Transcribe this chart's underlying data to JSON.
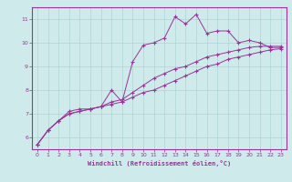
{
  "xlabel": "Windchill (Refroidissement éolien,°C)",
  "ylabel": "",
  "background_color": "#ceeaea",
  "grid_color": "#aed4d4",
  "line_color": "#993399",
  "spine_color": "#993399",
  "xlim": [
    -0.5,
    23.5
  ],
  "ylim": [
    5.5,
    11.5
  ],
  "xticks": [
    0,
    1,
    2,
    3,
    4,
    5,
    6,
    7,
    8,
    9,
    10,
    11,
    12,
    13,
    14,
    15,
    16,
    17,
    18,
    19,
    20,
    21,
    22,
    23
  ],
  "yticks": [
    6,
    7,
    8,
    9,
    10,
    11
  ],
  "series": [
    [
      5.7,
      6.3,
      6.7,
      7.1,
      7.2,
      7.2,
      7.3,
      8.0,
      7.5,
      9.2,
      9.9,
      10.0,
      10.2,
      11.1,
      10.8,
      11.2,
      10.4,
      10.5,
      10.5,
      10.0,
      10.1,
      10.0,
      9.8,
      9.8
    ],
    [
      5.7,
      6.3,
      6.7,
      7.0,
      7.1,
      7.2,
      7.3,
      7.5,
      7.6,
      7.9,
      8.2,
      8.5,
      8.7,
      8.9,
      9.0,
      9.2,
      9.4,
      9.5,
      9.6,
      9.7,
      9.8,
      9.85,
      9.85,
      9.85
    ],
    [
      5.7,
      6.3,
      6.7,
      7.0,
      7.1,
      7.2,
      7.3,
      7.4,
      7.5,
      7.7,
      7.9,
      8.0,
      8.2,
      8.4,
      8.6,
      8.8,
      9.0,
      9.1,
      9.3,
      9.4,
      9.5,
      9.6,
      9.7,
      9.75
    ]
  ]
}
